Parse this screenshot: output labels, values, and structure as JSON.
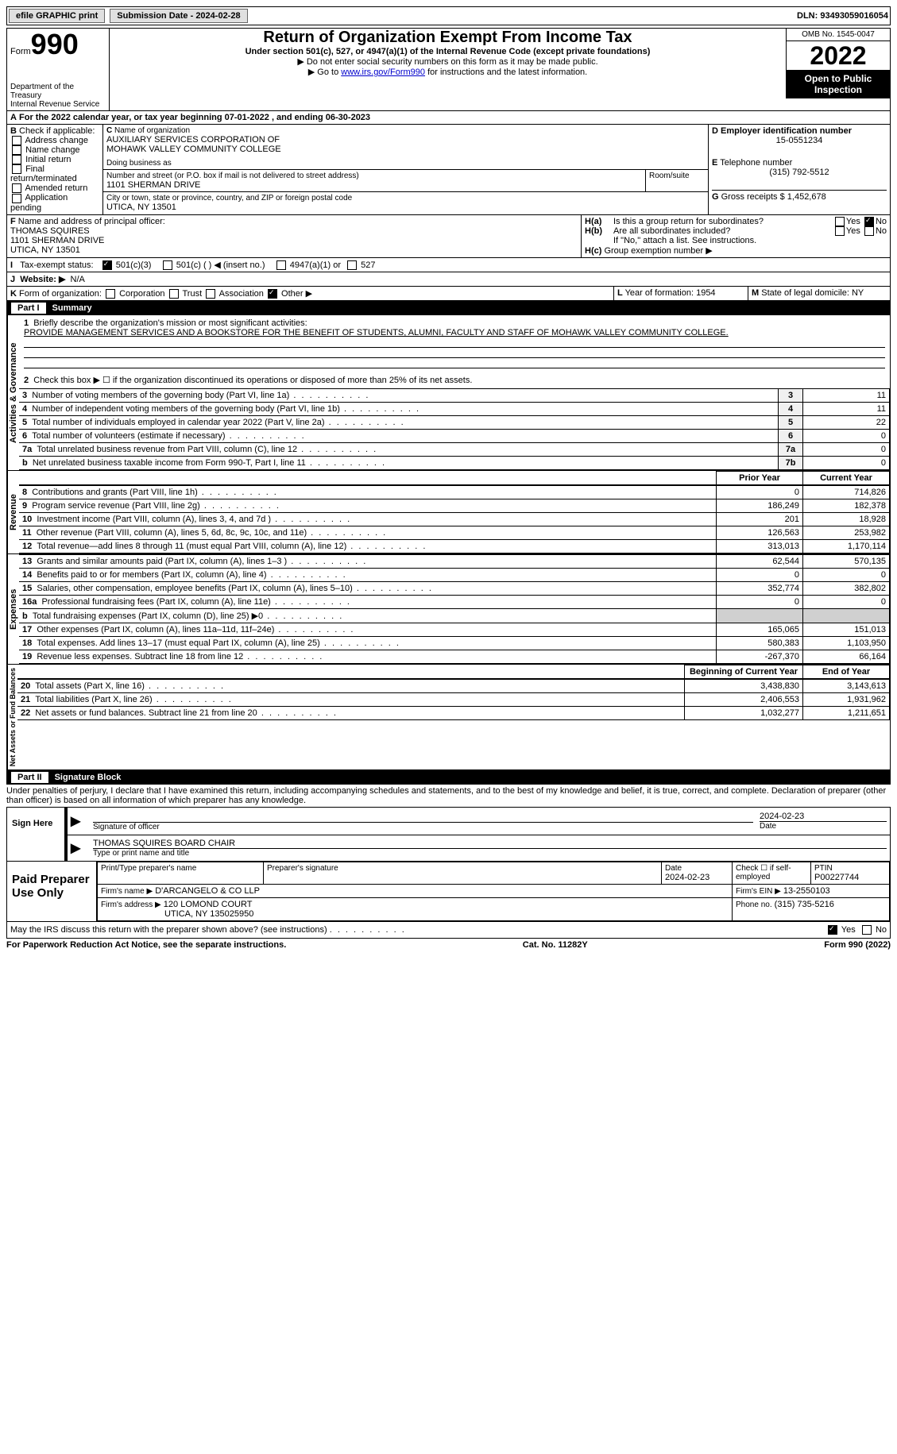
{
  "topbar": {
    "efile": "efile GRAPHIC print",
    "submission_label": "Submission Date - 2024-02-28",
    "dln_label": "DLN: 93493059016054"
  },
  "header": {
    "form_word": "Form",
    "form_num": "990",
    "title": "Return of Organization Exempt From Income Tax",
    "subtitle": "Under section 501(c), 527, or 4947(a)(1) of the Internal Revenue Code (except private foundations)",
    "instr1": "▶ Do not enter social security numbers on this form as it may be made public.",
    "instr2_pre": "▶ Go to ",
    "instr2_link": "www.irs.gov/Form990",
    "instr2_post": " for instructions and the latest information.",
    "dept1": "Department of the Treasury",
    "dept2": "Internal Revenue Service",
    "omb": "OMB No. 1545-0047",
    "year": "2022",
    "open": "Open to Public Inspection"
  },
  "A": {
    "text": "For the 2022 calendar year, or tax year beginning 07-01-2022    , and ending 06-30-2023"
  },
  "B": {
    "label": "Check if applicable:",
    "items": [
      "Address change",
      "Name change",
      "Initial return",
      "Final return/terminated",
      "Amended return",
      "Application pending"
    ]
  },
  "C": {
    "name_lbl": "Name of organization",
    "name1": "AUXILIARY SERVICES CORPORATION OF",
    "name2": "MOHAWK VALLEY COMMUNITY COLLEGE",
    "dba_lbl": "Doing business as",
    "addr_lbl": "Number and street (or P.O. box if mail is not delivered to street address)",
    "room_lbl": "Room/suite",
    "addr": "1101 SHERMAN DRIVE",
    "city_lbl": "City or town, state or province, country, and ZIP or foreign postal code",
    "city": "UTICA, NY  13501"
  },
  "D": {
    "lbl": "Employer identification number",
    "val": "15-0551234"
  },
  "E": {
    "lbl": "Telephone number",
    "val": "(315) 792-5512"
  },
  "G": {
    "lbl": "Gross receipts $",
    "val": "1,452,678"
  },
  "F": {
    "lbl": "Name and address of principal officer:",
    "name": "THOMAS SQUIRES",
    "addr1": "1101 SHERMAN DRIVE",
    "addr2": "UTICA, NY  13501"
  },
  "H": {
    "a_lbl": "Is this a group return for subordinates?",
    "b_lbl": "Are all subordinates included?",
    "b_note": "If \"No,\" attach a list. See instructions.",
    "c_lbl": "Group exemption number ▶",
    "yes": "Yes",
    "no": "No"
  },
  "I": {
    "lbl": "Tax-exempt status:",
    "opt1": "501(c)(3)",
    "opt2": "501(c) (  ) ◀ (insert no.)",
    "opt3": "4947(a)(1) or",
    "opt4": "527"
  },
  "J": {
    "lbl": "Website: ▶",
    "val": "N/A"
  },
  "K": {
    "lbl": "Form of organization:",
    "opts": [
      "Corporation",
      "Trust",
      "Association",
      "Other ▶"
    ]
  },
  "L": {
    "lbl": "Year of formation:",
    "val": "1954"
  },
  "M": {
    "lbl": "State of legal domicile:",
    "val": "NY"
  },
  "parts": {
    "p1": "Part I",
    "p1_title": "Summary",
    "p2": "Part II",
    "p2_title": "Signature Block"
  },
  "summary": {
    "sections": {
      "gov": "Activities & Governance",
      "rev": "Revenue",
      "exp": "Expenses",
      "net": "Net Assets or Fund Balances"
    },
    "line1_lbl": "Briefly describe the organization's mission or most significant activities:",
    "mission": "PROVIDE MANAGEMENT SERVICES AND A BOOKSTORE FOR THE BENEFIT OF STUDENTS, ALUMNI, FACULTY AND STAFF OF MOHAWK VALLEY COMMUNITY COLLEGE.",
    "line2": "Check this box ▶ ☐ if the organization discontinued its operations or disposed of more than 25% of its net assets.",
    "rows_gov": [
      {
        "n": "3",
        "lbl": "Number of voting members of the governing body (Part VI, line 1a)",
        "box": "3",
        "val": "11"
      },
      {
        "n": "4",
        "lbl": "Number of independent voting members of the governing body (Part VI, line 1b)",
        "box": "4",
        "val": "11"
      },
      {
        "n": "5",
        "lbl": "Total number of individuals employed in calendar year 2022 (Part V, line 2a)",
        "box": "5",
        "val": "22"
      },
      {
        "n": "6",
        "lbl": "Total number of volunteers (estimate if necessary)",
        "box": "6",
        "val": "0"
      },
      {
        "n": "7a",
        "lbl": "Total unrelated business revenue from Part VIII, column (C), line 12",
        "box": "7a",
        "val": "0"
      },
      {
        "n": "b",
        "lbl": "Net unrelated business taxable income from Form 990-T, Part I, line 11",
        "box": "7b",
        "val": "0"
      }
    ],
    "col_prior": "Prior Year",
    "col_curr": "Current Year",
    "rows_rev": [
      {
        "n": "8",
        "lbl": "Contributions and grants (Part VIII, line 1h)",
        "p": "0",
        "c": "714,826"
      },
      {
        "n": "9",
        "lbl": "Program service revenue (Part VIII, line 2g)",
        "p": "186,249",
        "c": "182,378"
      },
      {
        "n": "10",
        "lbl": "Investment income (Part VIII, column (A), lines 3, 4, and 7d )",
        "p": "201",
        "c": "18,928"
      },
      {
        "n": "11",
        "lbl": "Other revenue (Part VIII, column (A), lines 5, 6d, 8c, 9c, 10c, and 11e)",
        "p": "126,563",
        "c": "253,982"
      },
      {
        "n": "12",
        "lbl": "Total revenue—add lines 8 through 11 (must equal Part VIII, column (A), line 12)",
        "p": "313,013",
        "c": "1,170,114"
      }
    ],
    "rows_exp": [
      {
        "n": "13",
        "lbl": "Grants and similar amounts paid (Part IX, column (A), lines 1–3 )",
        "p": "62,544",
        "c": "570,135"
      },
      {
        "n": "14",
        "lbl": "Benefits paid to or for members (Part IX, column (A), line 4)",
        "p": "0",
        "c": "0"
      },
      {
        "n": "15",
        "lbl": "Salaries, other compensation, employee benefits (Part IX, column (A), lines 5–10)",
        "p": "352,774",
        "c": "382,802"
      },
      {
        "n": "16a",
        "lbl": "Professional fundraising fees (Part IX, column (A), line 11e)",
        "p": "0",
        "c": "0"
      },
      {
        "n": "b",
        "lbl": "Total fundraising expenses (Part IX, column (D), line 25) ▶0",
        "p": "",
        "c": "",
        "shade": true
      },
      {
        "n": "17",
        "lbl": "Other expenses (Part IX, column (A), lines 11a–11d, 11f–24e)",
        "p": "165,065",
        "c": "151,013"
      },
      {
        "n": "18",
        "lbl": "Total expenses. Add lines 13–17 (must equal Part IX, column (A), line 25)",
        "p": "580,383",
        "c": "1,103,950"
      },
      {
        "n": "19",
        "lbl": "Revenue less expenses. Subtract line 18 from line 12",
        "p": "-267,370",
        "c": "66,164"
      }
    ],
    "col_begin": "Beginning of Current Year",
    "col_end": "End of Year",
    "rows_net": [
      {
        "n": "20",
        "lbl": "Total assets (Part X, line 16)",
        "p": "3,438,830",
        "c": "3,143,613"
      },
      {
        "n": "21",
        "lbl": "Total liabilities (Part X, line 26)",
        "p": "2,406,553",
        "c": "1,931,962"
      },
      {
        "n": "22",
        "lbl": "Net assets or fund balances. Subtract line 21 from line 20",
        "p": "1,032,277",
        "c": "1,211,651"
      }
    ]
  },
  "sig": {
    "decl": "Under penalties of perjury, I declare that I have examined this return, including accompanying schedules and statements, and to the best of my knowledge and belief, it is true, correct, and complete. Declaration of preparer (other than officer) is based on all information of which preparer has any knowledge.",
    "sign_here": "Sign Here",
    "sig_officer_lbl": "Signature of officer",
    "date_lbl": "Date",
    "date_val": "2024-02-23",
    "name_title": "THOMAS SQUIRES BOARD CHAIR",
    "name_title_lbl": "Type or print name and title",
    "paid": "Paid Preparer Use Only",
    "prep_name_lbl": "Print/Type preparer's name",
    "prep_sig_lbl": "Preparer's signature",
    "prep_date_lbl": "Date",
    "prep_date": "2024-02-23",
    "check_self": "Check ☐ if self-employed",
    "ptin_lbl": "PTIN",
    "ptin": "P00227744",
    "firm_name_lbl": "Firm's name    ▶",
    "firm_name": "D'ARCANGELO & CO LLP",
    "firm_ein_lbl": "Firm's EIN ▶",
    "firm_ein": "13-2550103",
    "firm_addr_lbl": "Firm's address ▶",
    "firm_addr1": "120 LOMOND COURT",
    "firm_addr2": "UTICA, NY  135025950",
    "firm_phone_lbl": "Phone no.",
    "firm_phone": "(315) 735-5216",
    "discuss": "May the IRS discuss this return with the preparer shown above? (see instructions)",
    "yes": "Yes",
    "no": "No"
  },
  "footer": {
    "left": "For Paperwork Reduction Act Notice, see the separate instructions.",
    "mid": "Cat. No. 11282Y",
    "right": "Form 990 (2022)"
  }
}
